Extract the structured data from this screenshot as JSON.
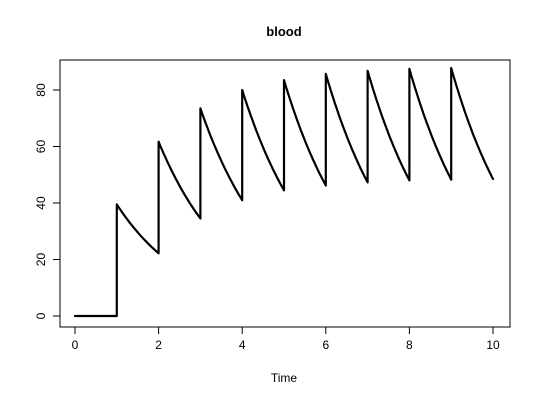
{
  "chart_data": {
    "type": "line",
    "title": "blood",
    "xlabel": "Time",
    "ylabel": "",
    "xlim": [
      0,
      10
    ],
    "ylim": [
      0,
      90
    ],
    "xticks": [
      "0",
      "2",
      "4",
      "6",
      "8",
      "10"
    ],
    "yticks": [
      "0",
      "20",
      "40",
      "60",
      "80"
    ],
    "grid": false,
    "legend": "none",
    "line_color": "#000000",
    "series": [
      {
        "x": [
          0,
          1,
          1,
          2,
          2,
          3,
          3,
          4,
          4,
          5,
          5,
          6,
          6,
          7,
          7,
          8,
          8,
          9,
          9,
          10
        ],
        "y": [
          0,
          0,
          39.5,
          22.2,
          61.7,
          34.5,
          73.5,
          41.0,
          80.0,
          44.5,
          83.5,
          46.2,
          85.7,
          47.3,
          86.8,
          48.0,
          87.5,
          48.3,
          87.8,
          48.5
        ]
      }
    ]
  }
}
